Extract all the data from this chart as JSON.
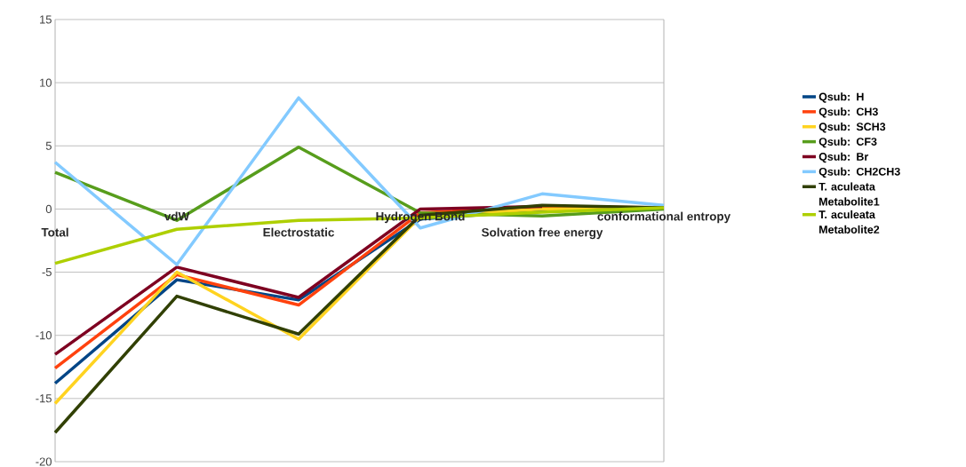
{
  "chart_data": {
    "type": "line",
    "categories": [
      "Total",
      "vdW",
      "Electrostatic",
      "Hydrogen Bond",
      "Solvation free energy",
      "conformational entropy"
    ],
    "series": [
      {
        "name": "Qsub: H",
        "color": "#004586",
        "values": [
          -13.8,
          -5.6,
          -7.2,
          -0.8,
          -0.1,
          0.1
        ]
      },
      {
        "name": "Qsub: CH3",
        "color": "#ff420e",
        "values": [
          -12.6,
          -5.2,
          -7.6,
          -0.3,
          0.2,
          0.1
        ]
      },
      {
        "name": "Qsub: SCH3",
        "color": "#ffd320",
        "values": [
          -15.4,
          -5.0,
          -10.3,
          -0.6,
          0.0,
          0.1
        ]
      },
      {
        "name": "Qsub: CF3",
        "color": "#579d1c",
        "values": [
          2.9,
          -0.9,
          4.9,
          -0.3,
          -0.55,
          0.0
        ]
      },
      {
        "name": "Qsub: Br",
        "color": "#7e0021",
        "values": [
          -11.5,
          -4.6,
          -7.0,
          0.0,
          0.2,
          null
        ]
      },
      {
        "name": "Qsub: CH2CH3",
        "color": "#83caff",
        "values": [
          3.7,
          -4.4,
          8.8,
          -1.5,
          1.2,
          0.3
        ]
      },
      {
        "name": "T. aculeata Metabolite1",
        "color": "#314004",
        "values": [
          -17.7,
          -6.9,
          -9.9,
          -0.5,
          0.3,
          0.1
        ]
      },
      {
        "name": "T. aculeata Metabolite2",
        "color": "#aecf00",
        "values": [
          -4.3,
          -1.6,
          -0.9,
          -0.7,
          -0.25,
          0.1
        ]
      }
    ],
    "ylim": [
      -20,
      15
    ],
    "yticks": [
      -20,
      -15,
      -10,
      -5,
      0,
      5,
      10,
      15
    ],
    "grid": "y",
    "legend": "right"
  }
}
